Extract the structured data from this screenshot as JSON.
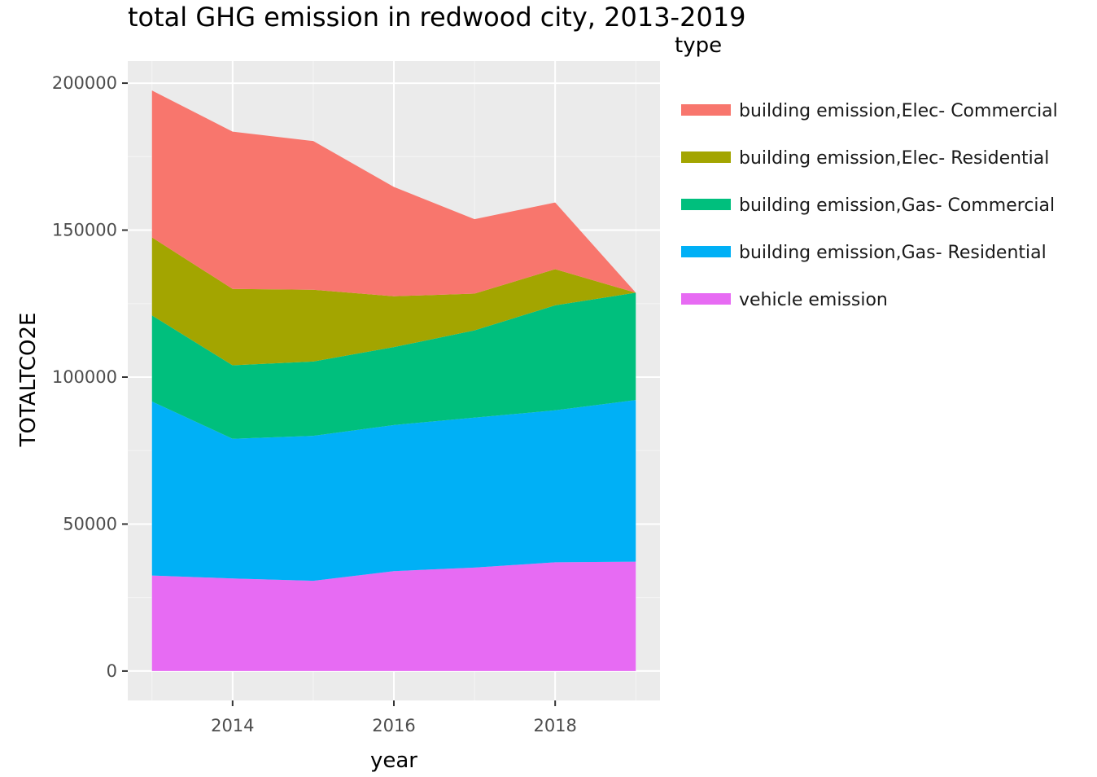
{
  "chart_data": {
    "type": "area",
    "stacked": true,
    "title": "total GHG emission in redwood city, 2013-2019",
    "xlabel": "year",
    "ylabel": "TOTALTCO2E",
    "xlim": [
      2012.7,
      2019.3
    ],
    "ylim": [
      -10000,
      207500
    ],
    "x_ticks": [
      2014,
      2016,
      2018
    ],
    "y_ticks": [
      0,
      50000,
      100000,
      150000,
      200000
    ],
    "grid": true,
    "background": "#ebebeb",
    "legend": {
      "title": "type",
      "position": "right"
    },
    "x": [
      2013,
      2014,
      2015,
      2016,
      2017,
      2018,
      2019
    ],
    "series": [
      {
        "name": "vehicle emission",
        "color": "#e76bf3",
        "values": [
          32500,
          31500,
          30700,
          34000,
          35200,
          37000,
          37200
        ]
      },
      {
        "name": "building emission,Gas- Residential",
        "color": "#00b0f6",
        "values": [
          59200,
          47500,
          49300,
          49700,
          51000,
          51700,
          55000
        ]
      },
      {
        "name": "building emission,Gas- Commercial",
        "color": "#00bf7d",
        "values": [
          29300,
          25000,
          25300,
          26500,
          29700,
          35700,
          36500
        ]
      },
      {
        "name": "building emission,Elec- Residential",
        "color": "#a3a500",
        "values": [
          26500,
          26000,
          24400,
          17300,
          12500,
          12300,
          0
        ]
      },
      {
        "name": "building emission,Elec- Commercial",
        "color": "#f8766d",
        "values": [
          50000,
          53500,
          50600,
          37200,
          25300,
          22700,
          0
        ]
      }
    ]
  }
}
